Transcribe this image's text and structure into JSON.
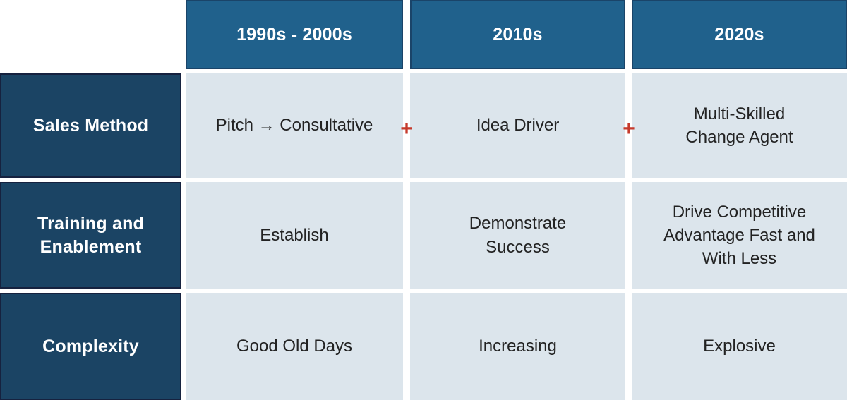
{
  "table": {
    "column_headers": [
      "1990s - 2000s",
      "2010s",
      "2020s"
    ],
    "rows": [
      {
        "label": "Sales Method",
        "cells": [
          "Pitch → Consultative",
          "Idea Driver",
          "Multi-Skilled\nChange Agent"
        ]
      },
      {
        "label": "Training and\nEnablement",
        "cells": [
          "Establish",
          "Demonstrate\nSuccess",
          "Drive Competitive\nAdvantage Fast and\nWith Less"
        ]
      },
      {
        "label": "Complexity",
        "cells": [
          "Good Old Days",
          "Increasing",
          "Explosive"
        ]
      }
    ],
    "plus": "+"
  },
  "colors": {
    "column_header_bg": "#20618C",
    "column_header_border": "#1A4469",
    "row_header_bg": "#1B4464",
    "row_header_border": "#16223F",
    "cell_bg": "#DCE5EC",
    "cell_text": "#222222",
    "header_text": "#FFFFFF",
    "plus_red": "#C63A2C",
    "page_background": "#FFFFFF"
  }
}
